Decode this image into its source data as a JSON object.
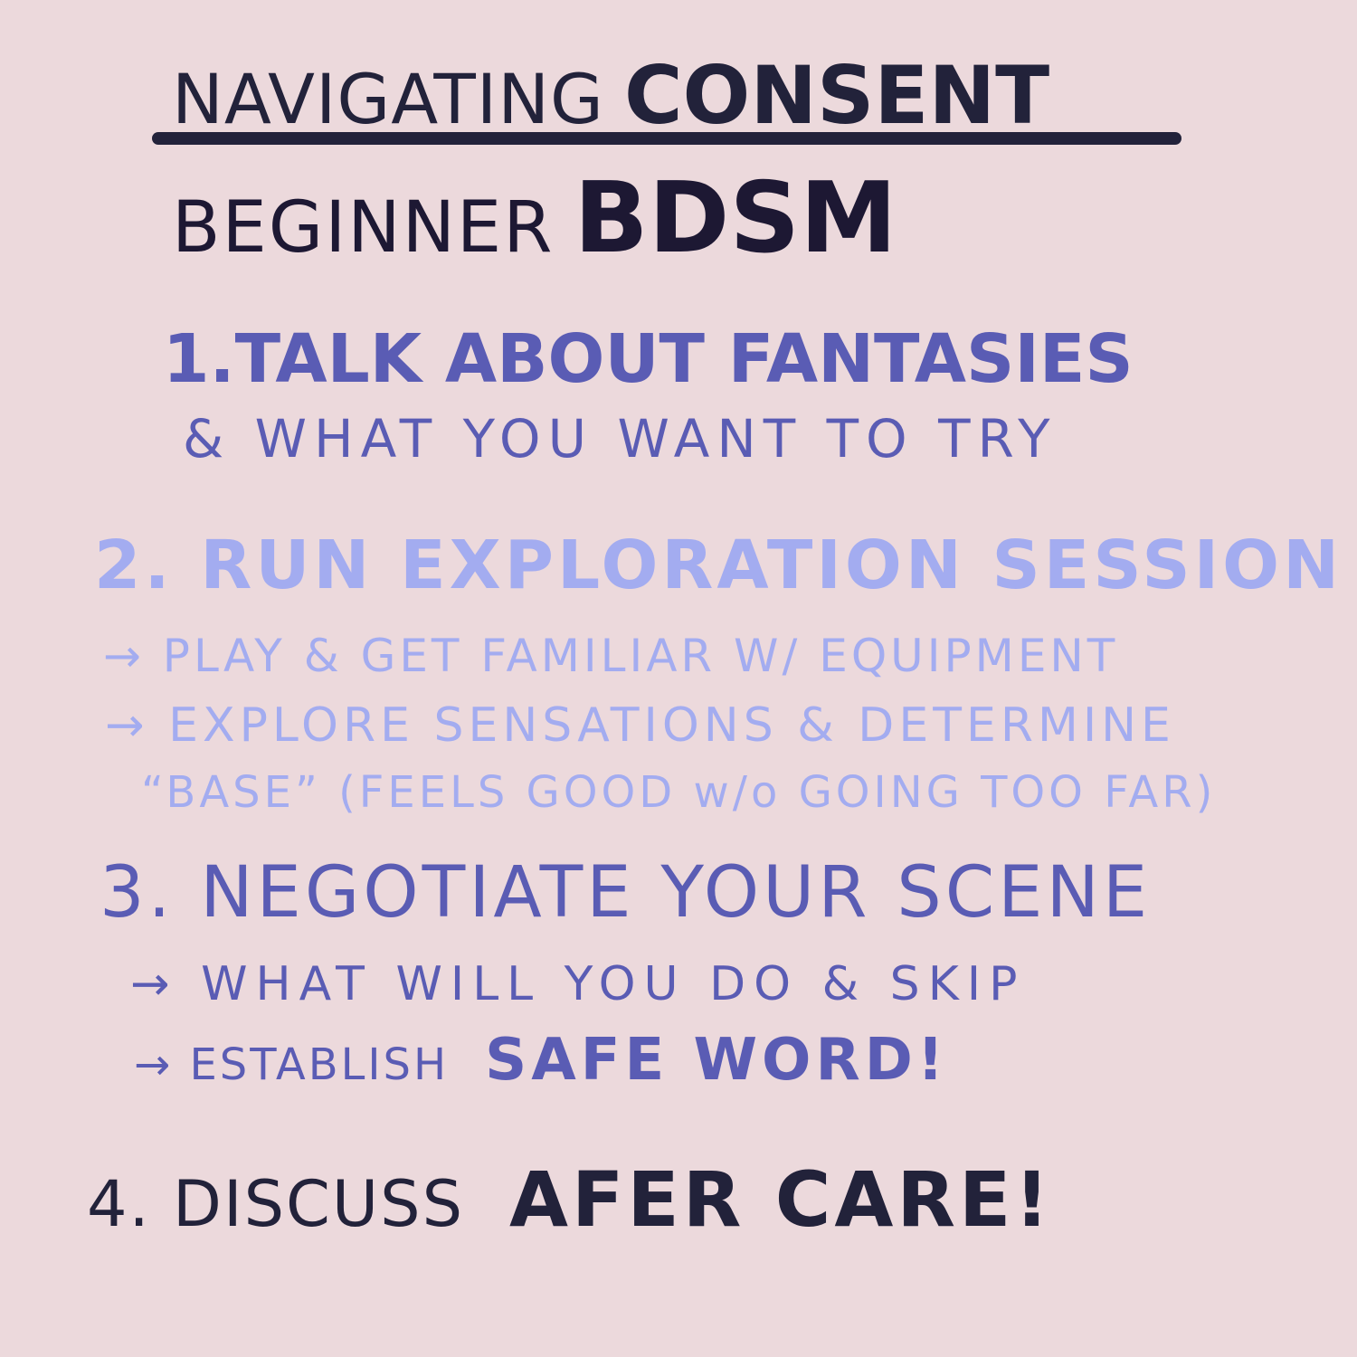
{
  "title": {
    "line1_prefix": "NAVIGATING",
    "line1_emphasis": "CONSENT",
    "line2_prefix": "BEGINNER",
    "line2_emphasis": "BDSM"
  },
  "steps": [
    {
      "heading": "1.TALK ABOUT FANTASIES",
      "subtext": "& WHAT YOU WANT TO TRY"
    },
    {
      "heading": "2. RUN EXPLORATION SESSION",
      "bullets": [
        "→ PLAY & GET FAMILIAR W/ EQUIPMENT",
        "→ EXPLORE SENSATIONS & DETERMINE",
        "“BASE” (FEELS GOOD w/o GOING TOO FAR)"
      ]
    },
    {
      "heading": "3. NEGOTIATE YOUR SCENE",
      "bullets": [
        "→ WHAT WILL YOU DO & SKIP"
      ],
      "bullet2_prefix": "→ ESTABLISH",
      "bullet2_emphasis": "SAFE WORD!"
    },
    {
      "heading_prefix": "4. DISCUSS",
      "heading_emphasis": "AFER CARE!"
    }
  ],
  "colors": {
    "background": "#ecd9dc",
    "ink_dark": "#22223a",
    "ink_indigo": "#5a5cb4",
    "ink_lavender": "#a3acf0"
  }
}
